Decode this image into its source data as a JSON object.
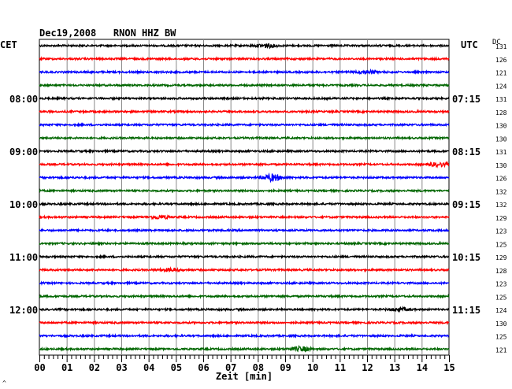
{
  "chart_data": {
    "type": "line",
    "title": "Dec19,2008   RNON HHZ BW",
    "xlabel": "Zeit [min]",
    "xlim": [
      0,
      15
    ],
    "x_ticks": [
      "00",
      "01",
      "02",
      "03",
      "04",
      "05",
      "06",
      "07",
      "08",
      "09",
      "10",
      "11",
      "12",
      "13",
      "14",
      "15"
    ],
    "left_timezone": "CET",
    "right_timezone": "UTC",
    "dc_label": "DC",
    "left_hour_labels": [
      "08:00",
      "09:00",
      "10:00",
      "11:00",
      "12:00"
    ],
    "right_hour_labels": [
      "07:15",
      "08:15",
      "09:15",
      "10:15",
      "11:15"
    ],
    "hour_label_rows": [
      4,
      8,
      12,
      16,
      20
    ],
    "trace_colors": [
      "#000000",
      "#ff0000",
      "#0000ff",
      "#006600"
    ],
    "dc_values": [
      131,
      126,
      121,
      124,
      131,
      128,
      130,
      130,
      131,
      130,
      126,
      132,
      132,
      129,
      123,
      125,
      129,
      128,
      123,
      125,
      124,
      130,
      125,
      121
    ],
    "events": [
      {
        "trace": 0,
        "minute": 8.3,
        "amplitude": 2.2
      },
      {
        "trace": 2,
        "minute": 12.0,
        "amplitude": 2.0
      },
      {
        "trace": 9,
        "minute": 14.6,
        "amplitude": 2.0
      },
      {
        "trace": 10,
        "minute": 8.5,
        "amplitude": 4.0
      },
      {
        "trace": 13,
        "minute": 4.4,
        "amplitude": 1.8
      },
      {
        "trace": 17,
        "minute": 4.8,
        "amplitude": 1.6
      },
      {
        "trace": 20,
        "minute": 13.2,
        "amplitude": 1.7
      },
      {
        "trace": 23,
        "minute": 9.6,
        "amplitude": 2.5
      }
    ],
    "grid": true
  },
  "footer_mark": "^"
}
